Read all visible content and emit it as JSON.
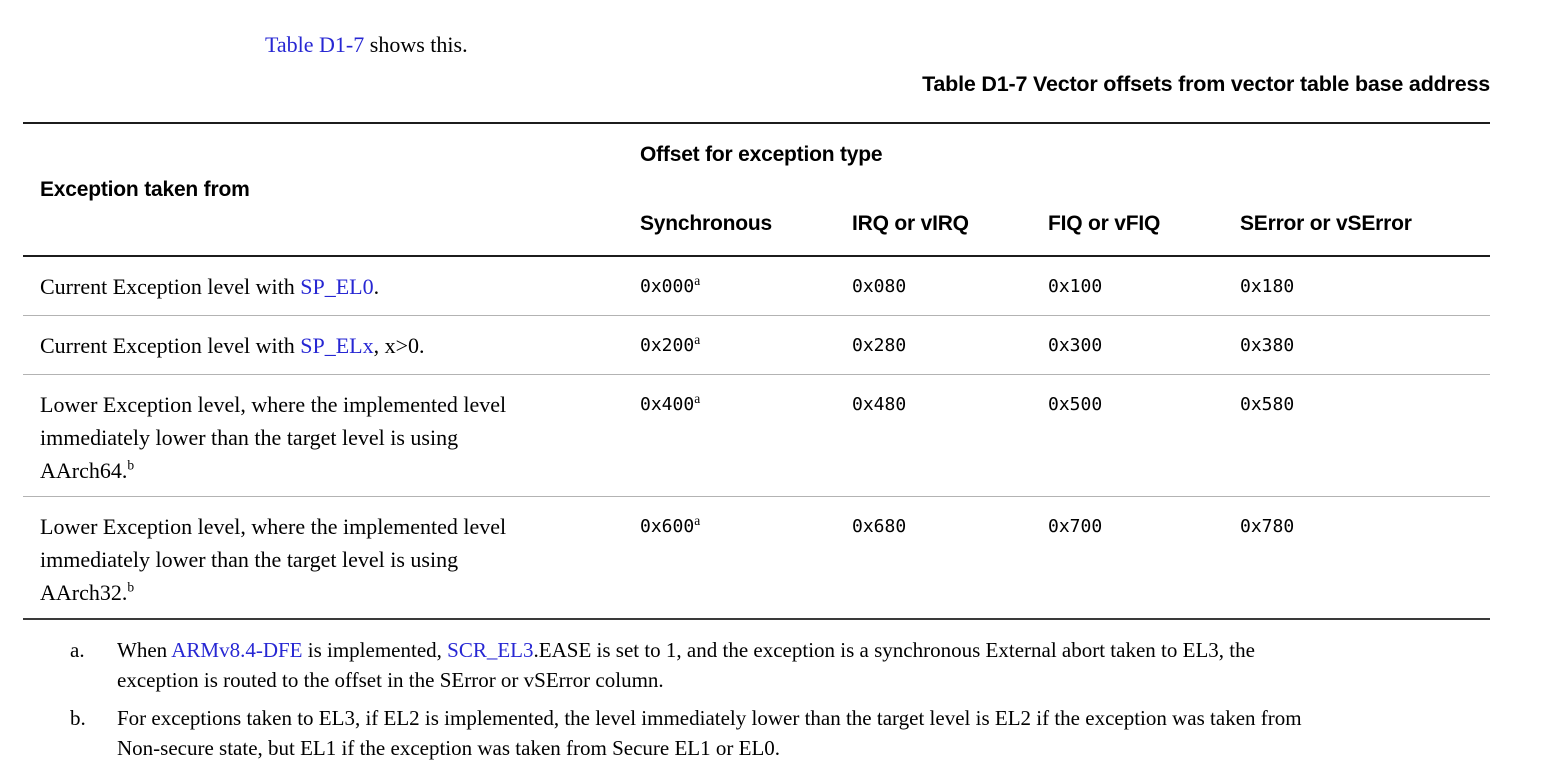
{
  "intro": {
    "link_text": "Table D1-7",
    "after_text": " shows this."
  },
  "table": {
    "title": "Table D1-7 Vector offsets from vector table base address",
    "header": {
      "col1": "Exception taken from",
      "group": "Offset for exception type",
      "sub": [
        "Synchronous",
        "IRQ or vIRQ",
        "FIQ or vFIQ",
        "SError or vSError"
      ]
    },
    "rows": [
      {
        "label": {
          "pre": "Current Exception level with ",
          "link": "SP_EL0",
          "post": "."
        },
        "values": [
          {
            "text": "0x000",
            "sup": "a"
          },
          {
            "text": "0x080",
            "sup": ""
          },
          {
            "text": "0x100",
            "sup": ""
          },
          {
            "text": "0x180",
            "sup": ""
          }
        ]
      },
      {
        "label": {
          "pre": "Current Exception level with ",
          "link": "SP_ELx",
          "post": ", x>0."
        },
        "values": [
          {
            "text": "0x200",
            "sup": "a"
          },
          {
            "text": "0x280",
            "sup": ""
          },
          {
            "text": "0x300",
            "sup": ""
          },
          {
            "text": "0x380",
            "sup": ""
          }
        ]
      },
      {
        "label": {
          "lines": [
            "Lower Exception level, where the implemented level",
            "immediately lower than the target level is using",
            "AArch64."
          ],
          "sup": "b"
        },
        "values": [
          {
            "text": "0x400",
            "sup": "a"
          },
          {
            "text": "0x480",
            "sup": ""
          },
          {
            "text": "0x500",
            "sup": ""
          },
          {
            "text": "0x580",
            "sup": ""
          }
        ]
      },
      {
        "label": {
          "lines": [
            "Lower Exception level, where the implemented level",
            "immediately lower than the target level is using",
            "AArch32."
          ],
          "sup": "b"
        },
        "values": [
          {
            "text": "0x600",
            "sup": "a"
          },
          {
            "text": "0x680",
            "sup": ""
          },
          {
            "text": "0x700",
            "sup": ""
          },
          {
            "text": "0x780",
            "sup": ""
          }
        ]
      }
    ]
  },
  "footnotes": [
    {
      "marker": "a.",
      "line1_parts": [
        {
          "text": "When "
        },
        {
          "text": "ARMv8.4-DFE"
        },
        {
          "text": " is implemented, "
        },
        {
          "text": "SCR_EL3"
        },
        {
          "text": ".EASE is set to 1, and the exception is a synchronous External abort taken to EL3, the"
        }
      ],
      "line2": "exception is routed to the offset in the SError or vSError column."
    },
    {
      "marker": "b.",
      "line1": "For exceptions taken to EL3, if EL2 is implemented, the level immediately lower than the target level is EL2 if the exception was taken from",
      "line2": "Non-secure state, but EL1 if the exception was taken from Secure EL1 or EL0."
    }
  ],
  "colors": {
    "link_blue": "#2727d3",
    "rule_dark": "#1c1c1c",
    "rule_light": "#b3b3b3"
  }
}
